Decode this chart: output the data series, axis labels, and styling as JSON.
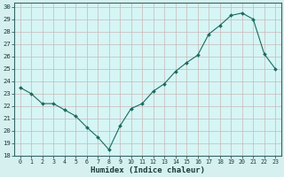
{
  "title": "",
  "xlabel": "Humidex (Indice chaleur)",
  "ylabel": "",
  "xlim": [
    -0.5,
    23.5
  ],
  "ylim": [
    18,
    30.3
  ],
  "yticks": [
    18,
    19,
    20,
    21,
    22,
    23,
    24,
    25,
    26,
    27,
    28,
    29,
    30
  ],
  "xticks": [
    0,
    1,
    2,
    3,
    4,
    5,
    6,
    7,
    8,
    9,
    10,
    11,
    12,
    13,
    14,
    15,
    16,
    17,
    18,
    19,
    20,
    21,
    22,
    23
  ],
  "background_color": "#d6f0f0",
  "plot_bg_color": "#d6f5f5",
  "grid_color": "#c0d8d8",
  "line_color": "#1a6b5e",
  "marker_color": "#1a6b5e",
  "x": [
    0,
    1,
    2,
    3,
    4,
    5,
    6,
    7,
    8,
    9,
    10,
    11,
    12,
    13,
    14,
    15,
    16,
    17,
    18,
    19,
    20,
    21,
    22,
    23
  ],
  "y": [
    23.5,
    23.0,
    22.2,
    22.2,
    21.7,
    21.2,
    20.3,
    19.5,
    18.5,
    20.4,
    21.8,
    22.2,
    23.2,
    23.8,
    24.8,
    25.5,
    26.1,
    27.8,
    28.5,
    29.3,
    29.5,
    29.0,
    26.2,
    25.0
  ]
}
